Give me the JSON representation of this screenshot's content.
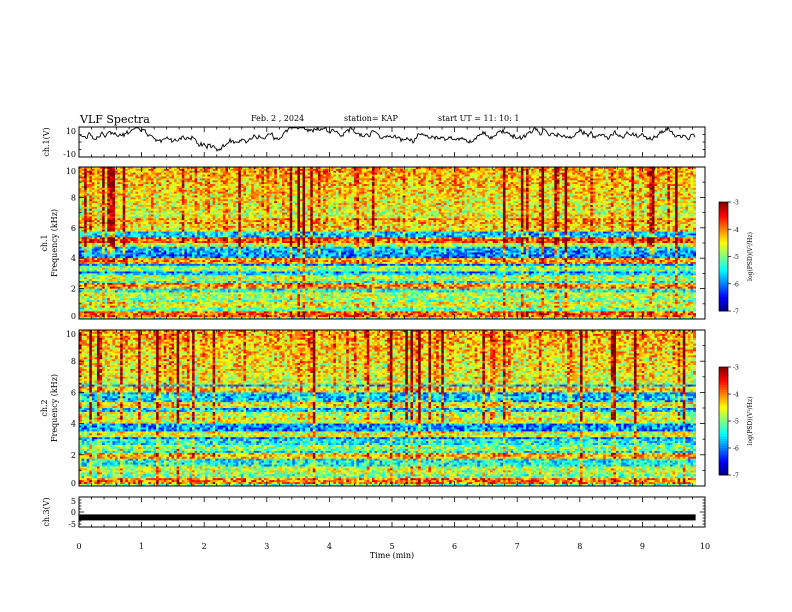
{
  "header": {
    "title": "VLF Spectra",
    "date": "Feb. 2 , 2024",
    "station": "station= KAP",
    "start": "start  UT =   11: 10: 1"
  },
  "chart_data": [
    {
      "panel": "ch1-waveform",
      "type": "line",
      "ylabel": "ch.1(V)",
      "ylim": [
        -10,
        10
      ],
      "yticks": [
        "10",
        "-10"
      ],
      "xlim": [
        0,
        10
      ],
      "approx_envelope": [
        2,
        5
      ],
      "color": "#000000"
    },
    {
      "panel": "ch1-spectrogram",
      "type": "heatmap",
      "ylabel": "ch.1\nFrequency (kHz)",
      "ylim": [
        0,
        10
      ],
      "yticks": [
        "0",
        "2",
        "4",
        "6",
        "8",
        "10"
      ],
      "xlim": [
        0,
        9.85
      ],
      "colorbar": {
        "label": "log(PSD)(V²/Hz)",
        "range": [
          -7,
          -3
        ],
        "ticks": [
          "-3",
          "-4",
          "-5",
          "-6",
          "-7"
        ]
      },
      "bands": [
        {
          "f": 0.3,
          "v": 0.8
        },
        {
          "f": 0.9,
          "v": 0.6
        },
        {
          "f": 1.5,
          "v": 0.55
        },
        {
          "f": 2.2,
          "v": 0.75
        },
        {
          "f": 2.7,
          "v": 0.55
        },
        {
          "f": 3.3,
          "v": 0.5
        },
        {
          "f": 3.8,
          "v": 0.75
        },
        {
          "f": 4.9,
          "v": 0.55
        },
        {
          "f": 5.2,
          "v": 0.8
        },
        {
          "f": 6.0,
          "v": 0.65
        },
        {
          "f": 6.4,
          "v": 0.7
        },
        {
          "f": 9.5,
          "v": 0.6
        }
      ]
    },
    {
      "panel": "ch2-spectrogram",
      "type": "heatmap",
      "ylabel": "ch.2\nFrequency (kHz)",
      "ylim": [
        0,
        10
      ],
      "yticks": [
        "0",
        "2",
        "4",
        "6",
        "8",
        "10"
      ],
      "xlim": [
        0,
        9.85
      ],
      "colorbar": {
        "label": "log(PSD)(V²/Hz)",
        "range": [
          -7,
          -3
        ],
        "ticks": [
          "-3",
          "-4",
          "-5",
          "-6",
          "-7"
        ]
      },
      "bands": [
        {
          "f": 0.3,
          "v": 0.75
        },
        {
          "f": 1.0,
          "v": 0.55
        },
        {
          "f": 1.9,
          "v": 0.7
        },
        {
          "f": 2.4,
          "v": 0.5
        },
        {
          "f": 3.3,
          "v": 0.6
        },
        {
          "f": 4.2,
          "v": 0.6
        },
        {
          "f": 4.6,
          "v": 0.55
        },
        {
          "f": 5.2,
          "v": 0.6
        },
        {
          "f": 6.2,
          "v": 0.65
        },
        {
          "f": 7.1,
          "v": 0.55
        },
        {
          "f": 7.4,
          "v": 0.6
        },
        {
          "f": 9.3,
          "v": 0.55
        }
      ]
    },
    {
      "panel": "ch3-trace",
      "type": "line",
      "ylabel": "ch.3(V)",
      "ylim": [
        -5,
        5
      ],
      "yticks": [
        "5",
        "0",
        "-5"
      ],
      "xlim": [
        0,
        10
      ],
      "xticks": [
        "0",
        "1",
        "2",
        "3",
        "4",
        "5",
        "6",
        "7",
        "8",
        "9",
        "10"
      ],
      "xlabel": "Time  (min)",
      "level": -1.8,
      "xend": 9.85
    }
  ]
}
